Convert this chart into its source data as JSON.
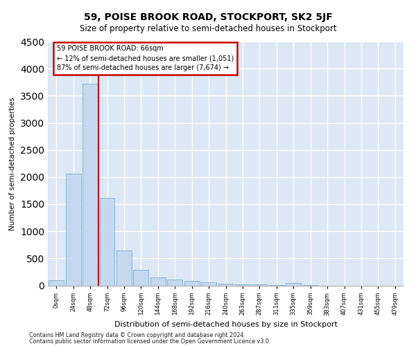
{
  "title_line1": "59, POISE BROOK ROAD, STOCKPORT, SK2 5JF",
  "title_line2": "Size of property relative to semi-detached houses in Stockport",
  "xlabel": "Distribution of semi-detached houses by size in Stockport",
  "ylabel": "Number of semi-detached properties",
  "footnote1": "Contains HM Land Registry data © Crown copyright and database right 2024.",
  "footnote2": "Contains public sector information licensed under the Open Government Licence v3.0.",
  "bar_color": "#c5d8ef",
  "bar_edge_color": "#7aaecd",
  "background_color": "#dce8f5",
  "grid_color": "#ffffff",
  "categories": [
    "0sqm",
    "24sqm",
    "48sqm",
    "72sqm",
    "96sqm",
    "120sqm",
    "144sqm",
    "168sqm",
    "192sqm",
    "216sqm",
    "240sqm",
    "263sqm",
    "287sqm",
    "311sqm",
    "335sqm",
    "359sqm",
    "383sqm",
    "407sqm",
    "431sqm",
    "455sqm",
    "479sqm"
  ],
  "values": [
    100,
    2060,
    3720,
    1610,
    650,
    290,
    150,
    110,
    80,
    55,
    35,
    25,
    15,
    5,
    50,
    5,
    0,
    0,
    0,
    0,
    0
  ],
  "ylim_max": 4500,
  "yticks": [
    0,
    500,
    1000,
    1500,
    2000,
    2500,
    3000,
    3500,
    4000,
    4500
  ],
  "annotation_line1": "59 POISE BROOK ROAD: 66sqm",
  "annotation_line2": "← 12% of semi-detached houses are smaller (1,051)",
  "annotation_line3": "87% of semi-detached houses are larger (7,674) →",
  "red_color": "#cc0000",
  "vline_x": 2.5
}
